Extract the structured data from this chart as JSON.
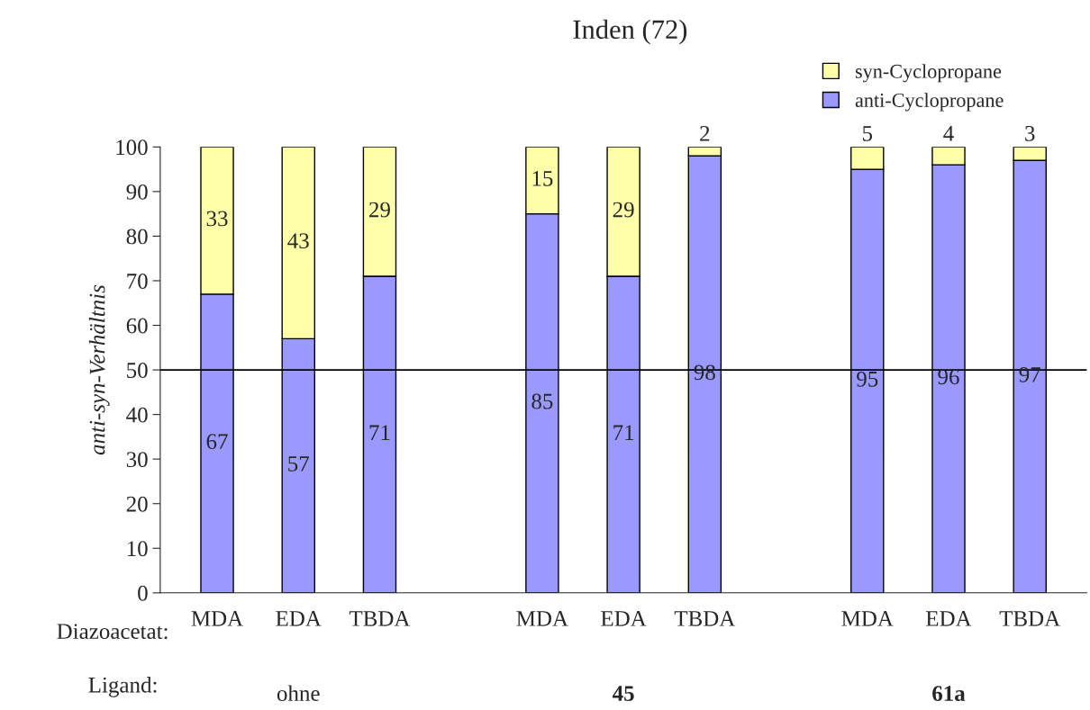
{
  "chart_data": {
    "type": "bar",
    "title": "Inden (72)",
    "ylabel": "anti-syn-Verhältnis",
    "stacked": true,
    "data_labels": true,
    "categories": [
      "MDA",
      "EDA",
      "TBDA",
      null,
      "MDA",
      "EDA",
      "TBDA",
      null,
      "MDA",
      "EDA",
      "TBDA"
    ],
    "series": [
      {
        "name": "anti-Cyclopropane",
        "color": "#9999ff",
        "values": [
          67,
          57,
          71,
          null,
          85,
          71,
          98,
          null,
          95,
          96,
          97
        ]
      },
      {
        "name": "syn-Cyclopropane",
        "color": "#ffffaa",
        "values": [
          33,
          43,
          29,
          null,
          15,
          29,
          2,
          null,
          5,
          4,
          3
        ]
      }
    ],
    "ylim": [
      0,
      100
    ],
    "yticks": [
      0,
      10,
      20,
      30,
      40,
      50,
      60,
      70,
      80,
      90,
      100
    ],
    "ref_lines": [
      {
        "axis": "y",
        "value": 50,
        "color": "#000000"
      }
    ],
    "legend": "top right",
    "grid": false,
    "annotations": [
      "Diazoacetat:",
      "Ligand:",
      "ohne",
      "45",
      "61a"
    ]
  }
}
